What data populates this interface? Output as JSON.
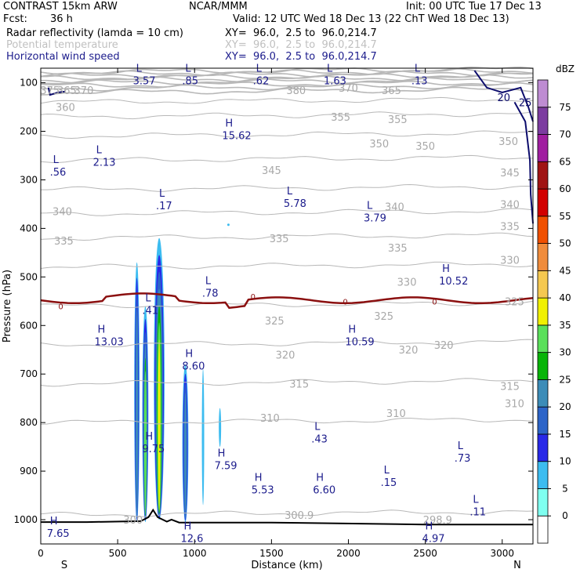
{
  "header": {
    "model": "CONTRAST 15km ARW",
    "center": "NCAR/MMM",
    "init": "Init: 00 UTC Tue 17 Dec 13",
    "fcst_label": "Fcst:",
    "fcst_value": "36 h",
    "valid": "Valid: 12 UTC Wed 18 Dec 13 (22 ChT Wed 18 Dec 13)",
    "fields": [
      {
        "name": "Radar reflectivity (lamda = 10 cm)",
        "xy": "XY=  96.0,  2.5 to  96.0,214.7",
        "color": "#000000"
      },
      {
        "name": "Potential temperature",
        "xy": "XY=  96.0,  2.5 to  96.0,214.7",
        "color": "#c0c0c0"
      },
      {
        "name": "Horizontal wind speed",
        "xy": "XY=  96.0,  2.5 to  96.0,214.7",
        "color": "#1c1c8c"
      }
    ]
  },
  "chart_data": {
    "type": "heatmap",
    "xlabel": "Distance (km)",
    "ylabel": "Pressure (hPa)",
    "x_range": [
      0,
      3200
    ],
    "y_range": [
      1050,
      70
    ],
    "x_ticks": [
      0,
      500,
      1000,
      1500,
      2000,
      2500,
      3000
    ],
    "y_ticks": [
      100,
      200,
      300,
      400,
      500,
      600,
      700,
      800,
      900,
      1000
    ],
    "x_end_labels": {
      "left": "S",
      "right": "N"
    },
    "colorbar": {
      "unit": "dBZ",
      "levels": [
        0,
        5,
        10,
        15,
        20,
        25,
        30,
        35,
        40,
        45,
        50,
        55,
        60,
        65,
        70,
        75
      ],
      "colors": [
        "#ffffff",
        "#7ffff0",
        "#3cbcf0",
        "#2828e8",
        "#2c64c8",
        "#3c8cb8",
        "#08b408",
        "#5ae05a",
        "#f0f000",
        "#f5c850",
        "#f08c3c",
        "#f05000",
        "#d20000",
        "#a01414",
        "#a01ea0",
        "#7c3ca0",
        "#be8cd2"
      ]
    },
    "theta_labels": [
      {
        "x": 60,
        "p": 115,
        "t": "375"
      },
      {
        "x": 170,
        "p": 115,
        "t": "365"
      },
      {
        "x": 280,
        "p": 115,
        "t": "370"
      },
      {
        "x": 1660,
        "p": 115,
        "t": "380"
      },
      {
        "x": 2000,
        "p": 110,
        "t": "370"
      },
      {
        "x": 2280,
        "p": 115,
        "t": "365"
      },
      {
        "x": 160,
        "p": 150,
        "t": "360"
      },
      {
        "x": 1950,
        "p": 170,
        "t": "355"
      },
      {
        "x": 2320,
        "p": 175,
        "t": "355"
      },
      {
        "x": 2200,
        "p": 225,
        "t": "350"
      },
      {
        "x": 2500,
        "p": 230,
        "t": "350"
      },
      {
        "x": 3040,
        "p": 220,
        "t": "350"
      },
      {
        "x": 1500,
        "p": 280,
        "t": "345"
      },
      {
        "x": 3050,
        "p": 285,
        "t": "345"
      },
      {
        "x": 140,
        "p": 365,
        "t": "340"
      },
      {
        "x": 2300,
        "p": 355,
        "t": "340"
      },
      {
        "x": 3050,
        "p": 350,
        "t": "340"
      },
      {
        "x": 3050,
        "p": 395,
        "t": "335"
      },
      {
        "x": 150,
        "p": 425,
        "t": "335"
      },
      {
        "x": 1550,
        "p": 420,
        "t": "335"
      },
      {
        "x": 2320,
        "p": 440,
        "t": "335"
      },
      {
        "x": 3050,
        "p": 465,
        "t": "330"
      },
      {
        "x": 2380,
        "p": 510,
        "t": "330"
      },
      {
        "x": 3080,
        "p": 550,
        "t": "325"
      },
      {
        "x": 1520,
        "p": 590,
        "t": "325"
      },
      {
        "x": 2230,
        "p": 580,
        "t": "325"
      },
      {
        "x": 1590,
        "p": 660,
        "t": "320"
      },
      {
        "x": 2390,
        "p": 650,
        "t": "320"
      },
      {
        "x": 2620,
        "p": 640,
        "t": "320"
      },
      {
        "x": 1680,
        "p": 720,
        "t": "315"
      },
      {
        "x": 3050,
        "p": 725,
        "t": "315"
      },
      {
        "x": 3080,
        "p": 760,
        "t": "310"
      },
      {
        "x": 1490,
        "p": 790,
        "t": "310"
      },
      {
        "x": 2310,
        "p": 780,
        "t": "310"
      },
      {
        "x": 1680,
        "p": 990,
        "t": "300.9"
      },
      {
        "x": 2580,
        "p": 1000,
        "t": "298.9"
      },
      {
        "x": 600,
        "p": 1000,
        "t": "300"
      }
    ],
    "theta_zero_labels": [
      {
        "x": 130,
        "p": 560,
        "t": "0"
      },
      {
        "x": 1380,
        "p": 540,
        "t": "0"
      },
      {
        "x": 1980,
        "p": 550,
        "t": "0"
      },
      {
        "x": 2560,
        "p": 550,
        "t": "0"
      }
    ],
    "wind_extrema": [
      {
        "x": 640,
        "p": 77,
        "k": "L",
        "v": "3.57"
      },
      {
        "x": 960,
        "p": 77,
        "k": "L",
        "v": ".85"
      },
      {
        "x": 1420,
        "p": 77,
        "k": "L",
        "v": ".62"
      },
      {
        "x": 1880,
        "p": 77,
        "k": "L",
        "v": "1.63"
      },
      {
        "x": 2450,
        "p": 77,
        "k": "L",
        "v": ".13"
      },
      {
        "x": 1220,
        "p": 190,
        "k": "H",
        "v": "15.62"
      },
      {
        "x": 380,
        "p": 245,
        "k": "L",
        "v": "2.13"
      },
      {
        "x": 100,
        "p": 265,
        "k": "L",
        "v": ".56"
      },
      {
        "x": 790,
        "p": 335,
        "k": "L",
        "v": ".17"
      },
      {
        "x": 1620,
        "p": 330,
        "k": "L",
        "v": "5.78"
      },
      {
        "x": 2140,
        "p": 360,
        "k": "L",
        "v": "3.79"
      },
      {
        "x": 2630,
        "p": 490,
        "k": "H",
        "v": "10.52"
      },
      {
        "x": 1090,
        "p": 515,
        "k": "L",
        "v": ".78"
      },
      {
        "x": 700,
        "p": 550,
        "k": "L",
        "v": ".41"
      },
      {
        "x": 390,
        "p": 615,
        "k": "H",
        "v": "13.03"
      },
      {
        "x": 2020,
        "p": 615,
        "k": "H",
        "v": "10.59"
      },
      {
        "x": 960,
        "p": 665,
        "k": "H",
        "v": "8.60"
      },
      {
        "x": 1800,
        "p": 815,
        "k": "L",
        "v": ".43"
      },
      {
        "x": 700,
        "p": 835,
        "k": "H",
        "v": "9.75"
      },
      {
        "x": 2730,
        "p": 855,
        "k": "L",
        "v": ".73"
      },
      {
        "x": 1170,
        "p": 870,
        "k": "H",
        "v": "7.59"
      },
      {
        "x": 1410,
        "p": 920,
        "k": "H",
        "v": "5.53"
      },
      {
        "x": 1810,
        "p": 920,
        "k": "H",
        "v": "6.60"
      },
      {
        "x": 2250,
        "p": 905,
        "k": "L",
        "v": ".15"
      },
      {
        "x": 2830,
        "p": 965,
        "k": "L",
        "v": ".11"
      },
      {
        "x": 80,
        "p": 1010,
        "k": "H",
        "v": "7.65"
      },
      {
        "x": 950,
        "p": 1020,
        "k": "H",
        "v": "12.6"
      },
      {
        "x": 2520,
        "p": 1020,
        "k": "H",
        "v": "4.97"
      }
    ],
    "wind_contour_labels": [
      {
        "x": 3010,
        "p": 130,
        "t": "20"
      },
      {
        "x": 3150,
        "p": 140,
        "t": "25"
      }
    ],
    "reflectivity_cells": [
      {
        "x": 625,
        "top": 470,
        "bottom": 1005,
        "w": 35,
        "levels": [
          5,
          10,
          15,
          20
        ]
      },
      {
        "x": 680,
        "top": 560,
        "bottom": 1005,
        "w": 40,
        "levels": [
          5,
          10,
          15,
          20,
          25,
          30
        ]
      },
      {
        "x": 770,
        "top": 420,
        "bottom": 1000,
        "w": 70,
        "levels": [
          5,
          10,
          15,
          20,
          25,
          30,
          35
        ]
      },
      {
        "x": 940,
        "top": 680,
        "bottom": 1005,
        "w": 40,
        "levels": [
          5,
          10,
          15,
          20
        ]
      },
      {
        "x": 1055,
        "top": 690,
        "bottom": 970,
        "w": 15,
        "levels": [
          5
        ]
      },
      {
        "x": 1165,
        "top": 770,
        "bottom": 850,
        "w": 12,
        "levels": [
          5
        ]
      },
      {
        "x": 1220,
        "top": 390,
        "bottom": 395,
        "w": 8,
        "levels": [
          5
        ]
      }
    ]
  }
}
